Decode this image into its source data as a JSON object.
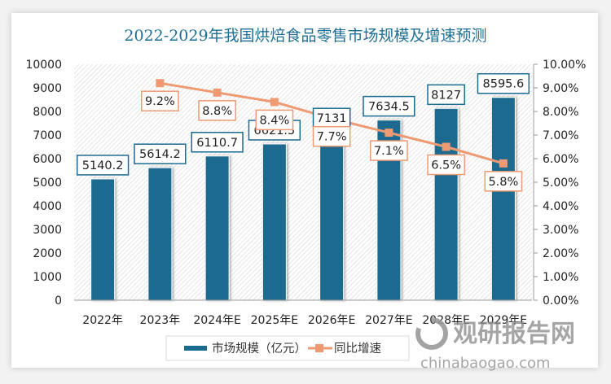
{
  "chart_data": {
    "type": "bar+line",
    "title": "2022-2029年我国烘焙食品零售市场规模及增速预测",
    "categories": [
      "2022年",
      "2023年",
      "2024年E",
      "2025年E",
      "2026年E",
      "2027年E",
      "2028年E",
      "2029年E"
    ],
    "series": [
      {
        "name": "市场规模（亿元）",
        "type": "bar",
        "axis": "left",
        "color": "#1b6a8f",
        "values": [
          5140.2,
          5614.2,
          6110.7,
          6621.5,
          7131,
          7634.5,
          8127,
          8595.6
        ],
        "labels": [
          "5140.2",
          "5614.2",
          "6110.7",
          "6621.5",
          "7131",
          "7634.5",
          "8127",
          "8595.6"
        ]
      },
      {
        "name": "同比增速",
        "type": "line",
        "axis": "right",
        "color": "#ee9a73",
        "values": [
          null,
          9.2,
          8.8,
          8.4,
          7.7,
          7.1,
          6.5,
          5.8
        ],
        "labels": [
          "",
          "9.2%",
          "8.8%",
          "8.4%",
          "7.7%",
          "7.1%",
          "6.5%",
          "5.8%"
        ]
      }
    ],
    "y_left": {
      "min": 0,
      "max": 10000,
      "step": 1000,
      "ticks": [
        "0",
        "1000",
        "2000",
        "3000",
        "4000",
        "5000",
        "6000",
        "7000",
        "8000",
        "9000",
        "10000"
      ]
    },
    "y_right": {
      "min": 0,
      "max": 10,
      "step": 1,
      "ticks": [
        "0.00%",
        "1.00%",
        "2.00%",
        "3.00%",
        "4.00%",
        "5.00%",
        "6.00%",
        "7.00%",
        "8.00%",
        "9.00%",
        "10.00%"
      ]
    },
    "legend": {
      "position": "bottom",
      "items": [
        "市场规模（亿元）",
        "同比增速"
      ]
    },
    "grid": false
  },
  "watermark": {
    "brand": "观研报告网",
    "url": "chinabaogao.com"
  }
}
